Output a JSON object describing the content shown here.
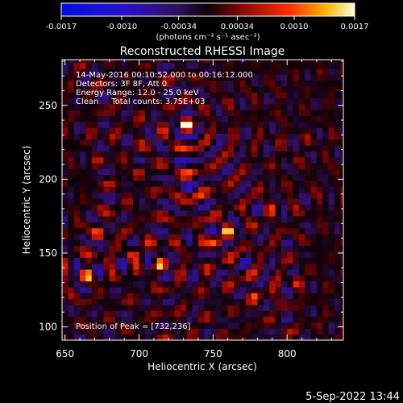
{
  "chart_data": {
    "type": "heatmap",
    "title": "Reconstructed RHESSI Image",
    "xlabel": "Heliocentric X (arcsec)",
    "ylabel": "Heliocentric Y (arcsec)",
    "xlim": [
      648,
      838
    ],
    "ylim": [
      91,
      281
    ],
    "x_ticks": [
      650,
      700,
      750,
      800
    ],
    "y_ticks": [
      100,
      150,
      200,
      250
    ],
    "x_tick_labels": [
      "650",
      "700",
      "750",
      "800"
    ],
    "y_tick_labels": [
      "100",
      "150",
      "200",
      "250"
    ],
    "colorbar": {
      "range": [
        -0.0017,
        0.0017
      ],
      "tick_labels": [
        "-0.0017",
        "-0.0010",
        "-0.00034",
        "0.00034",
        "0.0010",
        "0.0017"
      ],
      "units_label": "(photons cm⁻² s⁻¹ asec⁻²)"
    },
    "annotations": [
      "14-May-2016 00:10:52.000 to 00:16:12.000",
      "Detectors: 3F 8F, Att 0",
      "Energy Range: 12.0 - 25.0 keV",
      "Clean     Total counts: 3.75E+03"
    ],
    "peak_label": "Position of Peak = [732,236]",
    "peak": [
      732,
      236
    ],
    "bright_sources": [
      {
        "x": 732,
        "y": 236,
        "value": 0.0017
      },
      {
        "x": 760,
        "y": 165,
        "value": 0.00125
      },
      {
        "x": 752,
        "y": 158,
        "value": 0.0011
      },
      {
        "x": 665,
        "y": 135,
        "value": 0.00115
      },
      {
        "x": 714,
        "y": 142,
        "value": 0.001
      },
      {
        "x": 672,
        "y": 163,
        "value": 0.0009
      },
      {
        "x": 695,
        "y": 150,
        "value": 0.0008
      },
      {
        "x": 778,
        "y": 122,
        "value": 0.0008
      },
      {
        "x": 805,
        "y": 130,
        "value": 0.0007
      },
      {
        "x": 740,
        "y": 190,
        "value": 0.0006
      },
      {
        "x": 700,
        "y": 205,
        "value": 0.0005
      },
      {
        "x": 790,
        "y": 180,
        "value": 0.0005
      }
    ]
  },
  "footer": {
    "timestamp": "5-Sep-2022 13:44"
  }
}
